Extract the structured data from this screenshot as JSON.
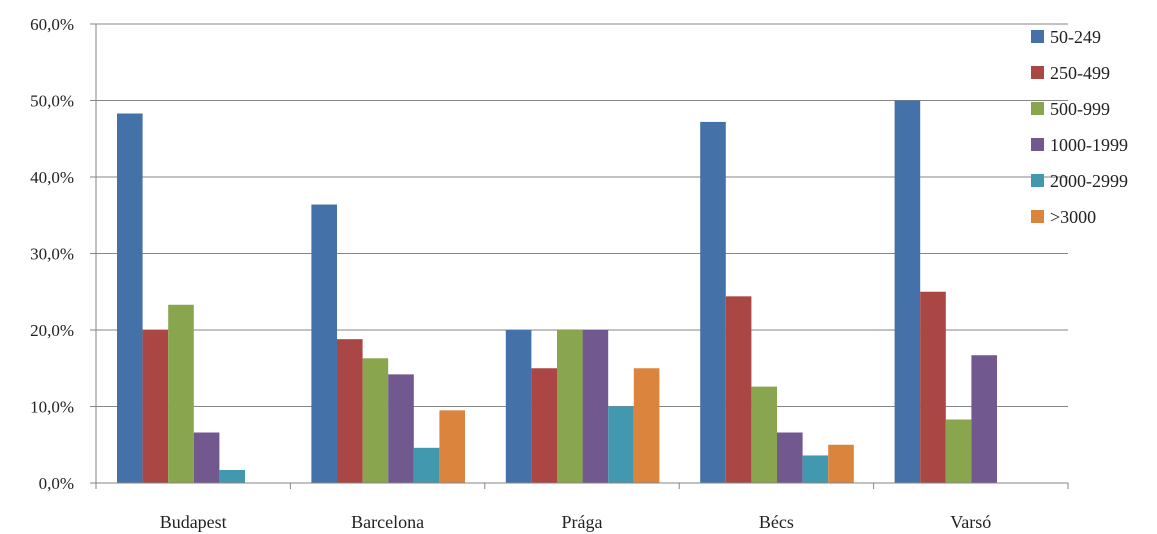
{
  "chart_data": {
    "type": "bar",
    "categories": [
      "Budapest",
      "Barcelona",
      "Prága",
      "Bécs",
      "Varsó"
    ],
    "series": [
      {
        "name": "50-249",
        "color": "#4472a8",
        "values": [
          48.3,
          36.4,
          20.0,
          47.2,
          50.0
        ]
      },
      {
        "name": "250-499",
        "color": "#aa4643",
        "values": [
          20.0,
          18.8,
          15.0,
          24.4,
          25.0
        ]
      },
      {
        "name": "500-999",
        "color": "#89a54e",
        "values": [
          23.3,
          16.3,
          20.0,
          12.6,
          8.3
        ]
      },
      {
        "name": "1000-1999",
        "color": "#71588f",
        "values": [
          6.6,
          14.2,
          20.0,
          6.6,
          16.7
        ]
      },
      {
        "name": "2000-2999",
        "color": "#4198af",
        "values": [
          1.7,
          4.6,
          10.0,
          3.6,
          0
        ]
      },
      {
        "name": ">3000",
        "color": "#db843d",
        "values": [
          0,
          9.5,
          15.0,
          5.0,
          0
        ]
      }
    ],
    "y_ticks": [
      "0,0%",
      "10,0%",
      "20,0%",
      "30,0%",
      "40,0%",
      "50,0%",
      "60,0%"
    ],
    "ylim": [
      0,
      60
    ],
    "grid": true,
    "legend_position": "right"
  }
}
